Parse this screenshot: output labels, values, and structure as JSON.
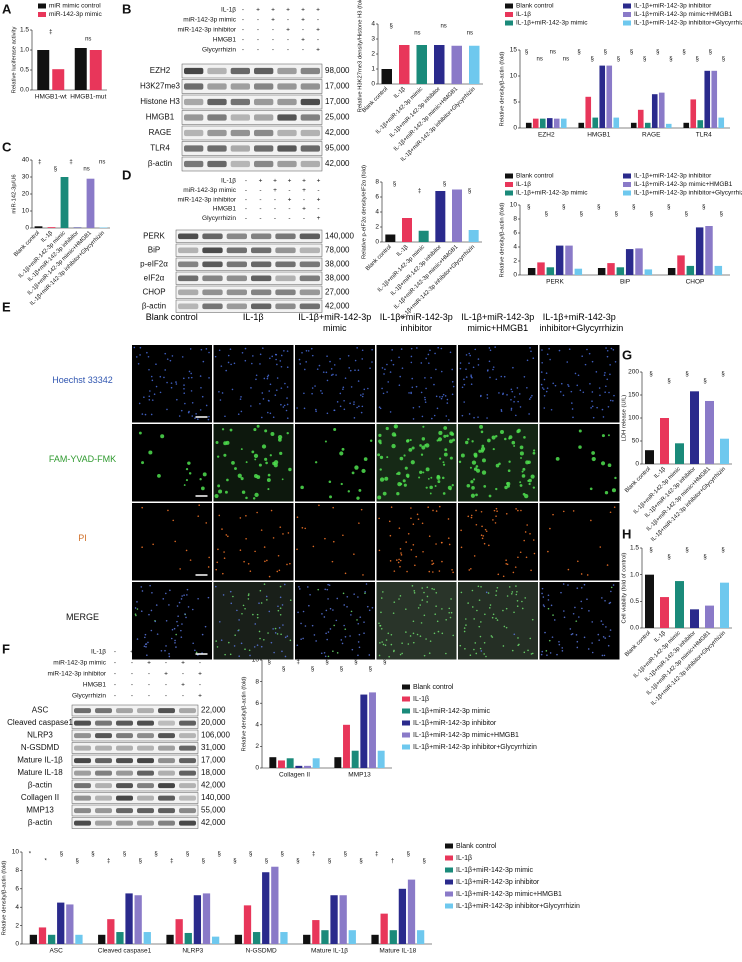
{
  "chart_data": [
    {
      "type": "bar",
      "y_label": "Relative luciferase activity",
      "categories": [
        "HMGB1-wt",
        "HMGB1-mut"
      ],
      "series": [
        {
          "name": "miR mimic control",
          "color": "#111111",
          "values": [
            1.0,
            1.05
          ]
        },
        {
          "name": "miR-142-3p mimic",
          "color": "#e8365a",
          "values": [
            0.52,
            1.0
          ]
        }
      ],
      "ylim": [
        0,
        1.5
      ],
      "yticks": [
        {
          "value": 0,
          "label": "0.0"
        },
        {
          "value": 0.5,
          "label": "0.5"
        },
        {
          "value": 1,
          "label": "1.0"
        },
        {
          "value": 1.5,
          "label": "1.5"
        }
      ],
      "legend": "top",
      "annotations": [
        "‡",
        "ns"
      ]
    },
    {
      "type": "bar",
      "y_label": "Relative H3K27me3 density/Histone H3 (fold)",
      "categories": [
        "Blank control",
        "IL-1β",
        "IL-1β+miR-142-3p mimic",
        "IL-1β+miR-142-3p inhibitor",
        "IL-1β+miR-142-3p mimic+HMGB1",
        "IL-1β+miR-142-3p inhibitor+Glycyrrhizin"
      ],
      "values": [
        1.0,
        2.6,
        2.6,
        2.6,
        2.55,
        2.55
      ],
      "colors": [
        "#111111",
        "#e8365a",
        "#1a8a7a",
        "#2a2a8c",
        "#8a7ac8",
        "#6ec8ee"
      ],
      "ylim": [
        0,
        4
      ],
      "yticks": [
        0,
        1,
        2,
        3,
        4
      ],
      "annotations": [
        "§",
        "ns",
        "ns",
        "ns"
      ]
    },
    {
      "type": "bar",
      "y_label": "Relative density/β-actin (fold)",
      "categories": [
        "EZH2",
        "HMGB1",
        "RAGE",
        "TLR4"
      ],
      "series": [
        {
          "name": "Blank control",
          "color": "#111111",
          "values": [
            1,
            1,
            1,
            1
          ]
        },
        {
          "name": "IL-1β",
          "color": "#e8365a",
          "values": [
            1.8,
            6,
            3.5,
            5.5
          ]
        },
        {
          "name": "IL-1β+miR-142-3p mimic",
          "color": "#1a8a7a",
          "values": [
            1.8,
            2,
            1,
            1.5
          ]
        },
        {
          "name": "IL-1β+miR-142-3p inhibitor",
          "color": "#2a2a8c",
          "values": [
            1.9,
            12,
            6.5,
            11
          ]
        },
        {
          "name": "IL-1β+miR-142-3p mimic+HMGB1",
          "color": "#8a7ac8",
          "values": [
            1.8,
            12,
            6.8,
            11
          ]
        },
        {
          "name": "IL-1β+miR-142-3p inhibitor+Glycyrrhizin",
          "color": "#6ec8ee",
          "values": [
            1.8,
            2,
            0.8,
            2
          ]
        }
      ],
      "ylim": [
        0,
        15
      ],
      "yticks": [
        0,
        5,
        10,
        15
      ],
      "legend": "top",
      "annotations": [
        "§",
        "ns",
        "ns",
        "ns",
        "§",
        "§",
        "§",
        "§",
        "§",
        "§",
        "§",
        "§",
        "§",
        "§",
        "§",
        "§"
      ]
    },
    {
      "type": "bar",
      "y_label": "miR-142-3p/U6",
      "categories": [
        "Blank control",
        "IL-1β",
        "IL-1β+miR-142-3p mimic",
        "IL-1β+miR-142-3p inhibitor",
        "IL-1β+miR-142-3p mimic+HMGB1",
        "IL-1β+miR-142-3p inhibitor+Glycyrrhizin"
      ],
      "values": [
        1,
        0.5,
        30,
        0.3,
        29,
        0.3
      ],
      "colors": [
        "#111111",
        "#e8365a",
        "#1a8a7a",
        "#2a2a8c",
        "#8a7ac8",
        "#6ec8ee"
      ],
      "ylim": [
        0,
        40
      ],
      "yticks": [
        0,
        10,
        20,
        30,
        40
      ],
      "annotations": [
        "‡",
        "§",
        "‡",
        "ns",
        "ns"
      ]
    },
    {
      "type": "bar",
      "y_label": "Relative p-eIF2α density/eIF2α (fold)",
      "categories": [
        "Blank control",
        "IL-1β",
        "IL-1β+miR-142-3p mimic",
        "IL-1β+miR-142-3p inhibitor",
        "IL-1β+miR-142-3p mimic+HMGB1",
        "IL-1β+miR-142-3p inhibitor+Glycyrrhizin"
      ],
      "values": [
        1,
        3.2,
        1.5,
        6.8,
        7,
        1.6
      ],
      "colors": [
        "#111111",
        "#e8365a",
        "#1a8a7a",
        "#2a2a8c",
        "#8a7ac8",
        "#6ec8ee"
      ],
      "ylim": [
        0,
        8
      ],
      "yticks": [
        0,
        2,
        4,
        6,
        8
      ],
      "annotations": [
        "§",
        "‡",
        "§",
        "§"
      ]
    },
    {
      "type": "bar",
      "y_label": "Relative density/β-actin (fold)",
      "categories": [
        "PERK",
        "BiP",
        "CHOP"
      ],
      "series": [
        {
          "name": "Blank control",
          "color": "#111111",
          "values": [
            1,
            1,
            1
          ]
        },
        {
          "name": "IL-1β",
          "color": "#e8365a",
          "values": [
            1.8,
            1.7,
            2.8
          ]
        },
        {
          "name": "IL-1β+miR-142-3p mimic",
          "color": "#1a8a7a",
          "values": [
            1.1,
            1.1,
            1.3
          ]
        },
        {
          "name": "IL-1β+miR-142-3p inhibitor",
          "color": "#2a2a8c",
          "values": [
            4.2,
            3.7,
            6.8
          ]
        },
        {
          "name": "IL-1β+miR-142-3p mimic+HMGB1",
          "color": "#8a7ac8",
          "values": [
            4.2,
            3.8,
            7
          ]
        },
        {
          "name": "IL-1β+miR-142-3p inhibitor+Glycyrrhizin",
          "color": "#6ec8ee",
          "values": [
            0.9,
            0.8,
            1.3
          ]
        }
      ],
      "ylim": [
        0,
        10
      ],
      "yticks": [
        0,
        2,
        4,
        6,
        8,
        10
      ],
      "legend": "top",
      "annotations": [
        "§",
        "§",
        "§",
        "§",
        "§",
        "§",
        "§",
        "§",
        "§",
        "§",
        "§",
        "§"
      ]
    },
    {
      "type": "bar",
      "y_label": "LDH release (U/L)",
      "categories": [
        "Blank control",
        "IL-1β",
        "IL-1β+miR-142-3p mimic",
        "IL-1β+miR-142-3p inhibitor",
        "IL-1β+miR-142-3p mimic+HMGB1",
        "IL-1β+miR-142-3p inhibitor+Glycyrrhizin"
      ],
      "values": [
        30,
        100,
        45,
        158,
        137,
        55
      ],
      "colors": [
        "#111111",
        "#e8365a",
        "#1a8a7a",
        "#2a2a8c",
        "#8a7ac8",
        "#6ec8ee"
      ],
      "ylim": [
        0,
        200
      ],
      "yticks": [
        0,
        50,
        100,
        150,
        200
      ],
      "annotations": [
        "§",
        "§",
        "§",
        "§",
        "§"
      ]
    },
    {
      "type": "bar",
      "y_label": "Cell viability (fold of control)",
      "categories": [
        "Blank control",
        "IL-1β",
        "IL-1β+miR-142-3p mimic",
        "IL-1β+miR-142-3p inhibitor",
        "IL-1β+miR-142-3p mimic+HMGB1",
        "IL-1β+miR-142-3p inhibitor+Glycyrrhizin"
      ],
      "values": [
        1,
        0.58,
        0.88,
        0.35,
        0.42,
        0.85
      ],
      "colors": [
        "#111111",
        "#e8365a",
        "#1a8a7a",
        "#2a2a8c",
        "#8a7ac8",
        "#6ec8ee"
      ],
      "ylim": [
        0,
        1.5
      ],
      "yticks": [
        {
          "value": 0,
          "label": "0.0"
        },
        {
          "value": 0.5,
          "label": "0.5"
        },
        {
          "value": 1,
          "label": "1.0"
        },
        {
          "value": 1.5,
          "label": "1.5"
        }
      ],
      "annotations": [
        "§",
        "§",
        "§",
        "§",
        "§"
      ]
    },
    {
      "type": "bar",
      "y_label": "Relative density/β-actin (fold)",
      "categories": [
        "Collagen II",
        "MMP13"
      ],
      "series": [
        {
          "name": "Blank control",
          "color": "#111111",
          "values": [
            1,
            1
          ]
        },
        {
          "name": "IL-1β",
          "color": "#e8365a",
          "values": [
            0.7,
            4
          ]
        },
        {
          "name": "IL-1β+miR-142-3p mimic",
          "color": "#1a8a7a",
          "values": [
            0.9,
            1.6
          ]
        },
        {
          "name": "IL-1β+miR-142-3p inhibitor",
          "color": "#2a2a8c",
          "values": [
            0.2,
            6.8
          ]
        },
        {
          "name": "IL-1β+miR-142-3p mimic+HMGB1",
          "color": "#8a7ac8",
          "values": [
            0.2,
            7
          ]
        },
        {
          "name": "IL-1β+miR-142-3p inhibitor+Glycyrrhizin",
          "color": "#6ec8ee",
          "values": [
            0.9,
            1.6
          ]
        }
      ],
      "ylim": [
        0,
        10
      ],
      "yticks": [
        0,
        2,
        4,
        6,
        8,
        10
      ],
      "legend": "right",
      "annotations": [
        "§",
        "§",
        "‡",
        "§",
        "§",
        "§",
        "§",
        "§",
        "§"
      ]
    },
    {
      "type": "bar",
      "y_label": "Relative density/β-actin (fold)",
      "categories": [
        "ASC",
        "Cleaved caspase1",
        "NLRP3",
        "N-GSDMD",
        "Mature IL-1β",
        "Mature IL-18"
      ],
      "series": [
        {
          "name": "Blank control",
          "color": "#111111",
          "values": [
            1,
            1,
            1,
            1,
            1,
            1
          ]
        },
        {
          "name": "IL-1β",
          "color": "#e8365a",
          "values": [
            1.8,
            2.7,
            2.7,
            4.2,
            2.6,
            3.3
          ]
        },
        {
          "name": "IL-1β+miR-142-3p mimic",
          "color": "#1a8a7a",
          "values": [
            1,
            1.3,
            1.2,
            1.3,
            1.5,
            1.5
          ]
        },
        {
          "name": "IL-1β+miR-142-3p inhibitor",
          "color": "#2a2a8c",
          "values": [
            4.5,
            5.5,
            5.3,
            7.8,
            5.3,
            6
          ]
        },
        {
          "name": "IL-1β+miR-142-3p mimic+HMGB1",
          "color": "#8a7ac8",
          "values": [
            4.3,
            5.3,
            5.5,
            8.4,
            5.3,
            7
          ]
        },
        {
          "name": "IL-1β+miR-142-3p inhibitor+Glycyrrhizin",
          "color": "#6ec8ee",
          "values": [
            1,
            1.3,
            0.8,
            1.3,
            1.5,
            1.5
          ]
        }
      ],
      "ylim": [
        0,
        10
      ],
      "yticks": [
        0,
        2,
        4,
        6,
        8,
        10
      ],
      "legend": "right",
      "annotations": [
        "*",
        "*",
        "§",
        "§",
        "§",
        "‡",
        "§",
        "§",
        "§",
        "‡",
        "§",
        "§",
        "§",
        "§",
        "§",
        "§",
        "§",
        "§",
        "‡",
        "§",
        "§",
        "§",
        "‡",
        "†",
        "§",
        "§"
      ]
    }
  ],
  "panel_labels": [
    "A",
    "B",
    "C",
    "D",
    "E",
    "F",
    "G",
    "H"
  ],
  "blots": [
    {
      "conditions": [
        {
          "name": "IL-1β",
          "signs": [
            "-",
            "+",
            "+",
            "+",
            "+",
            "+"
          ]
        },
        {
          "name": "miR-142-3p mimic",
          "signs": [
            "-",
            "-",
            "+",
            "-",
            "+",
            "-"
          ]
        },
        {
          "name": "miR-142-3p inhibitor",
          "signs": [
            "-",
            "-",
            "-",
            "+",
            "-",
            "+"
          ]
        },
        {
          "name": "HMGB1",
          "signs": [
            "-",
            "-",
            "-",
            "-",
            "+",
            "-"
          ]
        },
        {
          "name": "Glycyrrhizin",
          "signs": [
            "-",
            "-",
            "-",
            "-",
            "-",
            "+"
          ]
        }
      ],
      "bands": [
        {
          "name": "EZH2",
          "size": "98,000"
        },
        {
          "name": "H3K27me3",
          "size": "17,000"
        },
        {
          "name": "Histone H3",
          "size": "17,000"
        },
        {
          "name": "HMGB1",
          "size": "25,000"
        },
        {
          "name": "RAGE",
          "size": "42,000"
        },
        {
          "name": "TLR4",
          "size": "95,000"
        },
        {
          "name": "β-actin",
          "size": "42,000"
        }
      ]
    },
    {
      "conditions": [
        {
          "name": "IL-1β",
          "signs": [
            "-",
            "+",
            "+",
            "+",
            "+",
            "+"
          ]
        },
        {
          "name": "miR-142-3p mimic",
          "signs": [
            "-",
            "-",
            "+",
            "-",
            "+",
            "-"
          ]
        },
        {
          "name": "miR-142-3p inhibitor",
          "signs": [
            "-",
            "-",
            "-",
            "+",
            "-",
            "+"
          ]
        },
        {
          "name": "HMGB1",
          "signs": [
            "-",
            "-",
            "-",
            "-",
            "+",
            "-"
          ]
        },
        {
          "name": "Glycyrrhizin",
          "signs": [
            "-",
            "-",
            "-",
            "-",
            "-",
            "+"
          ]
        }
      ],
      "bands": [
        {
          "name": "PERK",
          "size": "140,000"
        },
        {
          "name": "BiP",
          "size": "78,000"
        },
        {
          "name": "p-eIF2α",
          "size": "38,000"
        },
        {
          "name": "eIF2α",
          "size": "38,000"
        },
        {
          "name": "CHOP",
          "size": "27,000"
        },
        {
          "name": "β-actin",
          "size": "42,000"
        }
      ]
    },
    {
      "conditions": [
        {
          "name": "IL-1β",
          "signs": [
            "-",
            "+",
            "+",
            "+",
            "+",
            "+"
          ]
        },
        {
          "name": "miR-142-3p mimic",
          "signs": [
            "-",
            "-",
            "+",
            "-",
            "+",
            "-"
          ]
        },
        {
          "name": "miR-142-3p inhibitor",
          "signs": [
            "-",
            "-",
            "-",
            "+",
            "-",
            "+"
          ]
        },
        {
          "name": "HMGB1",
          "signs": [
            "-",
            "-",
            "-",
            "-",
            "+",
            "-"
          ]
        },
        {
          "name": "Glycyrrhizin",
          "signs": [
            "-",
            "-",
            "-",
            "-",
            "-",
            "+"
          ]
        }
      ],
      "bands": [
        {
          "name": "ASC",
          "size": "22,000"
        },
        {
          "name": "Cleaved caspase1",
          "size": "20,000"
        },
        {
          "name": "NLRP3",
          "size": "106,000"
        },
        {
          "name": "N-GSDMD",
          "size": "31,000"
        },
        {
          "name": "Mature IL-1β",
          "size": "17,000"
        },
        {
          "name": "Mature IL-18",
          "size": "18,000"
        },
        {
          "name": "β-actin",
          "size": "42,000"
        },
        {
          "name": "Collagen II",
          "size": "140,000"
        },
        {
          "name": "MMP13",
          "size": "55,000"
        },
        {
          "name": "β-actin",
          "size": "42,000"
        }
      ]
    }
  ],
  "microscopy": {
    "columns": [
      "Blank control",
      "IL-1β",
      "IL-1β+miR-142-3p mimic",
      "IL-1β+miR-142-3p inhibitor",
      "IL-1β+miR-142-3p mimic+HMGB1",
      "IL-1β+miR-142-3p inhibitor+Glycyrrhizin"
    ],
    "rows": [
      "Hoechst 33342",
      "FAM-YVAD-FMK",
      "PI",
      "MERGE"
    ],
    "row_colors": [
      "#2f55b0",
      "#2f9a2f",
      "#d0702a",
      "#111111"
    ]
  }
}
